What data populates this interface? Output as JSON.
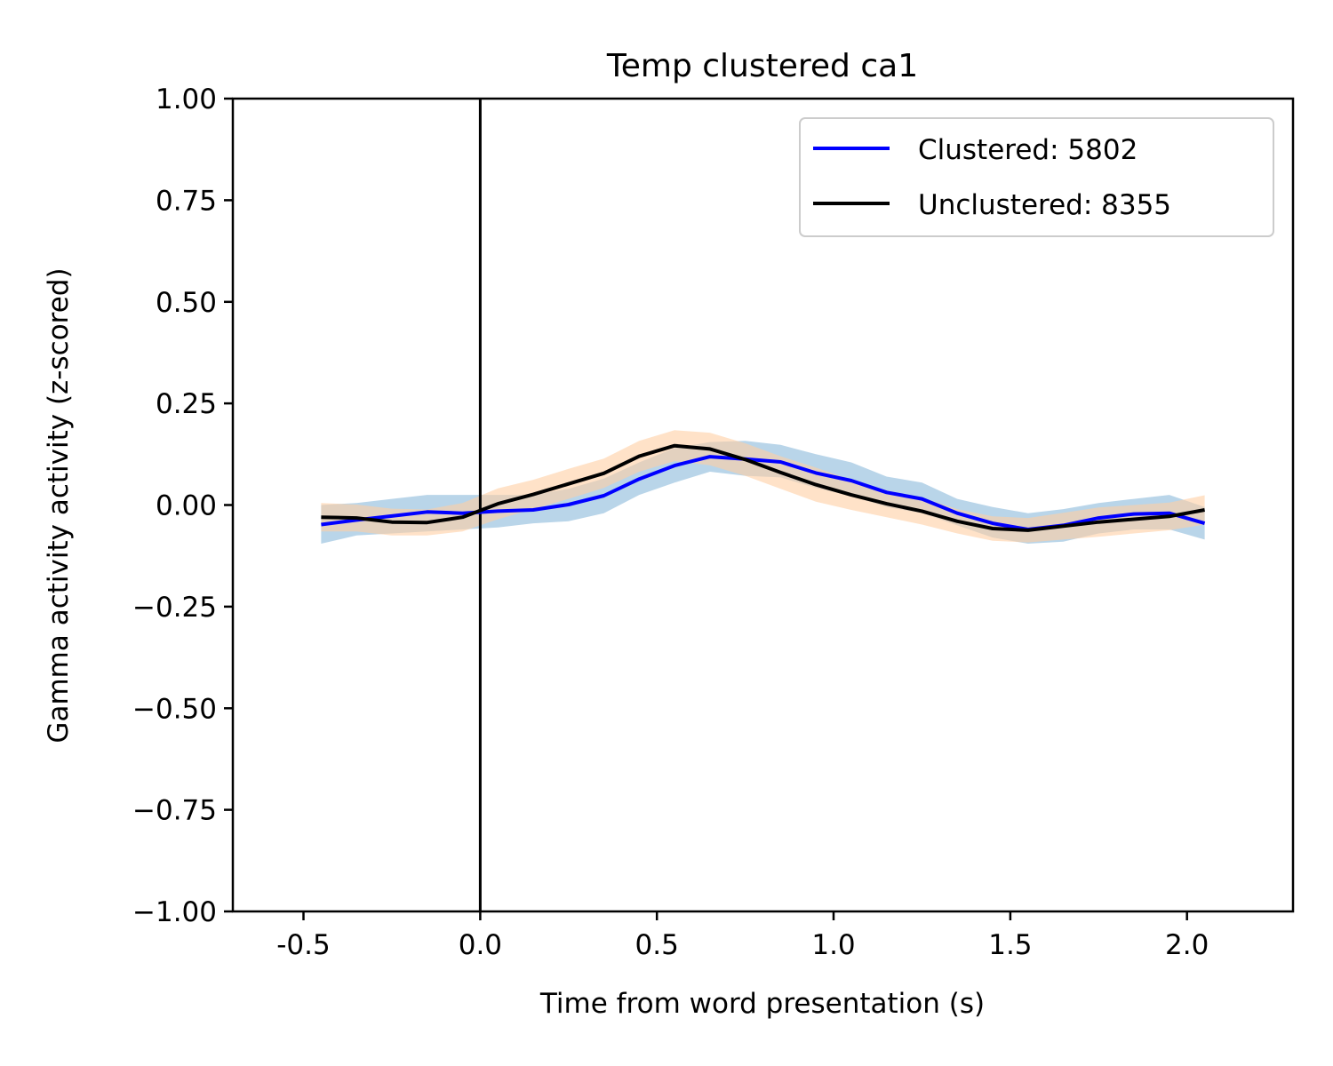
{
  "chart_data": {
    "type": "line",
    "title": "Temp clustered ca1",
    "xlabel": "Time from word presentation (s)",
    "ylabel": "Gamma activity activity (z-scored)",
    "xlim": [
      -0.7,
      2.3
    ],
    "ylim": [
      -1.0,
      1.0
    ],
    "x_ticks": [
      -0.5,
      0.0,
      0.5,
      1.0,
      1.5,
      2.0
    ],
    "x_tick_labels": [
      "-0.5",
      "0.0",
      "0.5",
      "1.0",
      "1.5",
      "2.0"
    ],
    "y_ticks": [
      1.0,
      0.75,
      0.5,
      0.25,
      0.0,
      -0.25,
      -0.5,
      -0.75,
      -1.0
    ],
    "y_tick_labels": [
      "1.00",
      "0.75",
      "0.50",
      "0.25",
      "0.00",
      "−0.25",
      "−0.50",
      "−0.75",
      "−1.00"
    ],
    "grid": false,
    "legend_position": "top-right",
    "vline_x": 0.0,
    "x": [
      -0.45,
      -0.35,
      -0.25,
      -0.15,
      -0.05,
      0.05,
      0.15,
      0.25,
      0.35,
      0.45,
      0.55,
      0.65,
      0.75,
      0.85,
      0.95,
      1.05,
      1.15,
      1.25,
      1.35,
      1.45,
      1.55,
      1.65,
      1.75,
      1.85,
      1.95,
      2.05
    ],
    "series": [
      {
        "name": "Clustered: 5802",
        "color": "#0000ff",
        "band_color": "#a8cbe4",
        "values": [
          -0.048,
          -0.037,
          -0.027,
          -0.017,
          -0.02,
          -0.015,
          -0.012,
          0.001,
          0.023,
          0.064,
          0.097,
          0.119,
          0.113,
          0.106,
          0.079,
          0.06,
          0.031,
          0.015,
          -0.02,
          -0.045,
          -0.06,
          -0.05,
          -0.032,
          -0.022,
          -0.02,
          -0.045
        ],
        "lower": [
          -0.095,
          -0.075,
          -0.07,
          -0.065,
          -0.06,
          -0.055,
          -0.045,
          -0.04,
          -0.02,
          0.025,
          0.055,
          0.082,
          0.072,
          0.068,
          0.042,
          0.022,
          -0.005,
          -0.02,
          -0.05,
          -0.08,
          -0.095,
          -0.09,
          -0.07,
          -0.06,
          -0.06,
          -0.085
        ],
        "upper": [
          0.0,
          0.005,
          0.015,
          0.025,
          0.025,
          0.025,
          0.025,
          0.04,
          0.065,
          0.105,
          0.14,
          0.155,
          0.158,
          0.148,
          0.125,
          0.105,
          0.07,
          0.055,
          0.015,
          -0.005,
          -0.02,
          -0.01,
          0.005,
          0.015,
          0.025,
          -0.005
        ]
      },
      {
        "name": "Unclustered: 8355",
        "color": "#000000",
        "band_color": "#ffcfa3",
        "values": [
          -0.03,
          -0.032,
          -0.042,
          -0.043,
          -0.03,
          0.003,
          0.026,
          0.052,
          0.078,
          0.12,
          0.146,
          0.138,
          0.112,
          0.08,
          0.05,
          0.025,
          0.003,
          -0.015,
          -0.04,
          -0.058,
          -0.062,
          -0.052,
          -0.042,
          -0.035,
          -0.028,
          -0.012
        ],
        "lower": [
          -0.065,
          -0.065,
          -0.075,
          -0.075,
          -0.065,
          -0.035,
          -0.01,
          0.015,
          0.042,
          0.082,
          0.108,
          0.098,
          0.072,
          0.04,
          0.008,
          -0.012,
          -0.03,
          -0.048,
          -0.07,
          -0.088,
          -0.092,
          -0.085,
          -0.078,
          -0.07,
          -0.062,
          -0.048
        ]
      }
    ]
  }
}
